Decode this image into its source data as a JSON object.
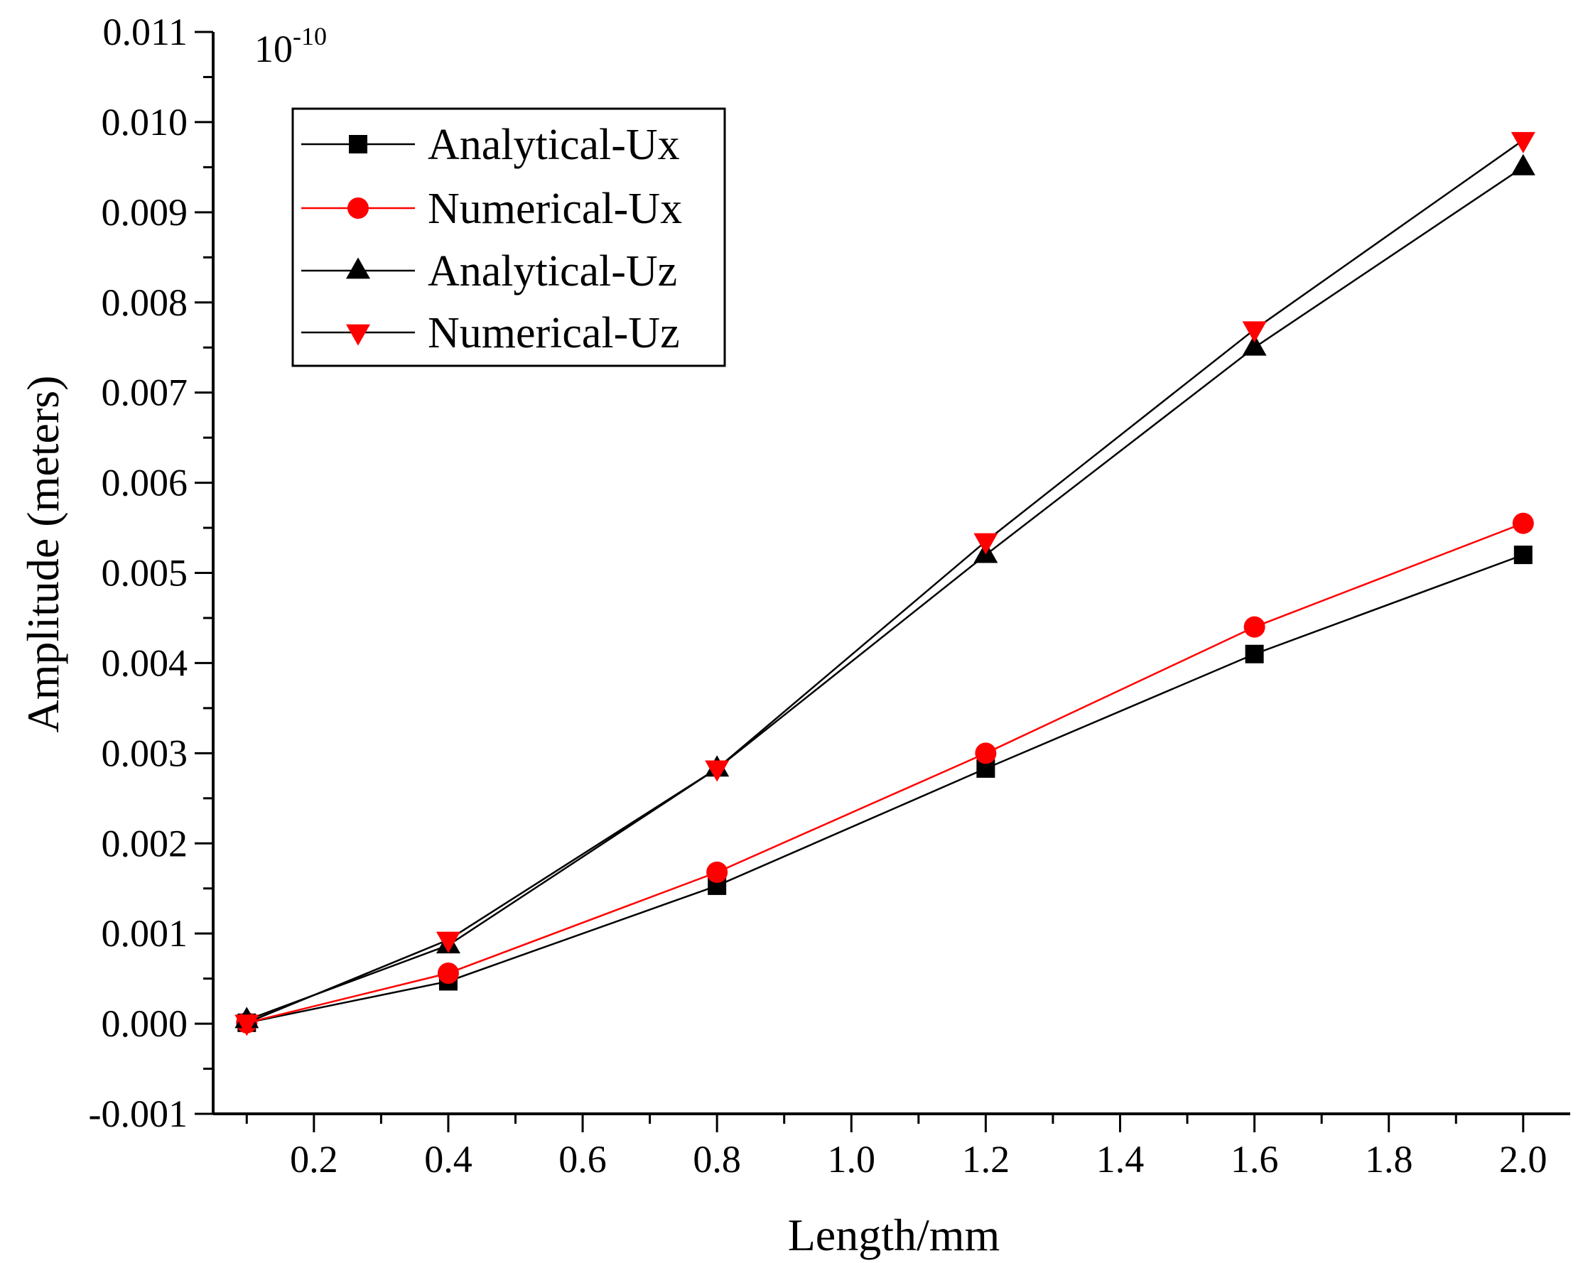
{
  "chart_data": {
    "type": "line",
    "title": "",
    "xlabel": "Length/mm",
    "ylabel": "Amplitude (meters)",
    "y_multiplier": {
      "base": "10",
      "exponent": "-10"
    },
    "xlim": [
      0.05,
      2.07
    ],
    "ylim": [
      -0.001,
      0.011
    ],
    "x_ticks": [
      0.2,
      0.4,
      0.6,
      0.8,
      1.0,
      1.2,
      1.4,
      1.6,
      1.8,
      2.0
    ],
    "x_tick_labels": [
      "0.2",
      "0.4",
      "0.6",
      "0.8",
      "1.0",
      "1.2",
      "1.4",
      "1.6",
      "1.8",
      "2.0"
    ],
    "y_ticks": [
      -0.001,
      0.0,
      0.001,
      0.002,
      0.003,
      0.004,
      0.005,
      0.006,
      0.007,
      0.008,
      0.009,
      0.01,
      0.011
    ],
    "y_tick_labels": [
      "-0.001",
      "0.000",
      "0.001",
      "0.002",
      "0.003",
      "0.004",
      "0.005",
      "0.006",
      "0.007",
      "0.008",
      "0.009",
      "0.010",
      "0.011"
    ],
    "grid": false,
    "legend_position": "top-left",
    "x": [
      0.1,
      0.4,
      0.8,
      1.2,
      1.6,
      2.0
    ],
    "series": [
      {
        "name": "Analytical-Ux",
        "marker": "square",
        "line_color": "#000000",
        "marker_color": "#000000",
        "values": [
          1e-05,
          0.00047,
          0.00153,
          0.00283,
          0.0041,
          0.0052
        ]
      },
      {
        "name": "Numerical-Ux",
        "marker": "circle",
        "line_color": "#ff0000",
        "marker_color": "#ff0000",
        "values": [
          1e-05,
          0.00056,
          0.00168,
          0.003,
          0.0044,
          0.00555
        ]
      },
      {
        "name": "Analytical-Uz",
        "marker": "triangle-up",
        "line_color": "#000000",
        "marker_color": "#000000",
        "values": [
          4e-05,
          0.00087,
          0.00283,
          0.0052,
          0.0075,
          0.0095
        ]
      },
      {
        "name": "Numerical-Uz",
        "marker": "triangle-down",
        "line_color": "#000000",
        "marker_color": "#ff0000",
        "values": [
          1e-05,
          0.00093,
          0.00283,
          0.00535,
          0.0077,
          0.0098
        ]
      }
    ]
  }
}
